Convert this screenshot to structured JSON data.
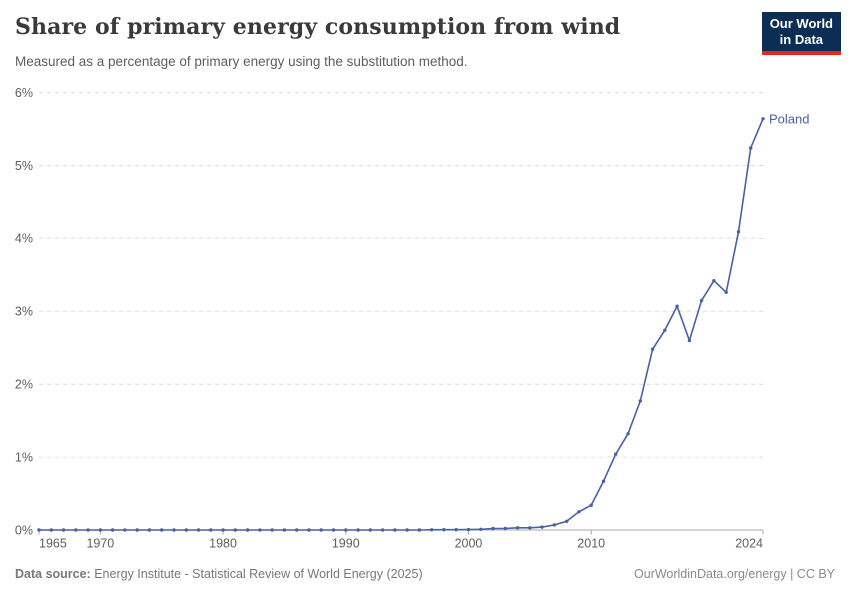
{
  "header": {
    "title": "Share of primary energy consumption from wind",
    "subtitle": "Measured as a percentage of primary energy using the substitution method.",
    "logo": {
      "line1": "Our World",
      "line2": "in Data",
      "bg_color": "#0d2e54",
      "accent_color": "#dc2a20"
    }
  },
  "footer": {
    "source_label": "Data source:",
    "source_text": "Energy Institute - Statistical Review of World Energy (2025)",
    "credit": "OurWorldinData.org/energy | CC BY"
  },
  "chart_data": {
    "type": "line",
    "title": "Share of primary energy consumption from wind",
    "subtitle": "Measured as a percentage of primary energy using the substitution method.",
    "xlabel": "",
    "ylabel": "",
    "xlim": [
      1965,
      2024
    ],
    "ylim": [
      0,
      6
    ],
    "x_ticks": [
      1965,
      1970,
      1980,
      1990,
      2000,
      2010,
      2024
    ],
    "y_ticks": [
      0,
      1,
      2,
      3,
      4,
      5,
      6
    ],
    "y_tick_suffix": "%",
    "grid": "horizontal-dashed",
    "legend_position": "end-of-line-label",
    "colors": {
      "gridline": "#dcdcdc",
      "axis_line": "#a8a8a8",
      "tick_label": "#5e5e5e"
    },
    "series": [
      {
        "name": "Poland",
        "color": "#4861a3",
        "x": [
          1965,
          1966,
          1967,
          1968,
          1969,
          1970,
          1971,
          1972,
          1973,
          1974,
          1975,
          1976,
          1977,
          1978,
          1979,
          1980,
          1981,
          1982,
          1983,
          1984,
          1985,
          1986,
          1987,
          1988,
          1989,
          1990,
          1991,
          1992,
          1993,
          1994,
          1995,
          1996,
          1997,
          1998,
          1999,
          2000,
          2001,
          2002,
          2003,
          2004,
          2005,
          2006,
          2007,
          2008,
          2009,
          2010,
          2011,
          2012,
          2013,
          2014,
          2015,
          2016,
          2017,
          2018,
          2019,
          2020,
          2021,
          2022,
          2023,
          2024
        ],
        "values": [
          0,
          0,
          0,
          0,
          0,
          0,
          0,
          0,
          0,
          0,
          0,
          0,
          0,
          0,
          0,
          0,
          0,
          0,
          0,
          0,
          0,
          0,
          0,
          0,
          0,
          0,
          0,
          0,
          0,
          0,
          0,
          0,
          0.003,
          0.004,
          0.004,
          0.005,
          0.01,
          0.02,
          0.02,
          0.03,
          0.03,
          0.04,
          0.07,
          0.12,
          0.25,
          0.34,
          0.67,
          1.04,
          1.32,
          1.77,
          2.48,
          2.74,
          3.07,
          2.6,
          3.15,
          3.42,
          3.26,
          4.09,
          5.24,
          5.64
        ]
      }
    ]
  }
}
